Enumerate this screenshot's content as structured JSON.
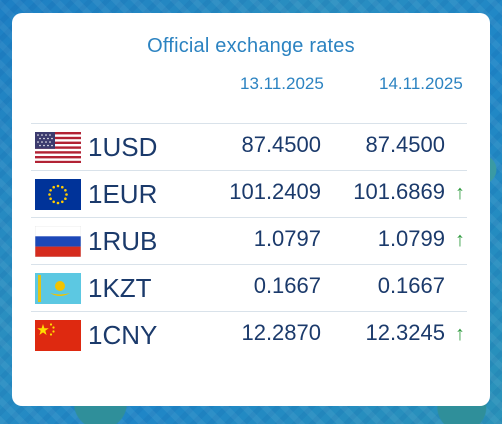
{
  "header": {
    "title": "Official exchange rates"
  },
  "dates": [
    "13.11.2025",
    "14.11.2025"
  ],
  "rates": [
    {
      "code": "1USD",
      "flag": "usa-flag-icon",
      "rate1": "87.4500",
      "rate2": "87.4500",
      "trend": "none"
    },
    {
      "code": "1EUR",
      "flag": "eu-flag-icon",
      "rate1": "101.2409",
      "rate2": "101.6869",
      "trend": "up"
    },
    {
      "code": "1RUB",
      "flag": "russia-flag-icon",
      "rate1": "1.0797",
      "rate2": "1.0799",
      "trend": "up"
    },
    {
      "code": "1KZT",
      "flag": "kazakhstan-flag-icon",
      "rate1": "0.1667",
      "rate2": "0.1667",
      "trend": "none"
    },
    {
      "code": "1CNY",
      "flag": "china-flag-icon",
      "rate1": "12.2870",
      "rate2": "12.3245",
      "trend": "up"
    }
  ],
  "colors": {
    "accent": "#2c83c1",
    "text": "#1b3a6b",
    "up": "#2e9a3e"
  }
}
